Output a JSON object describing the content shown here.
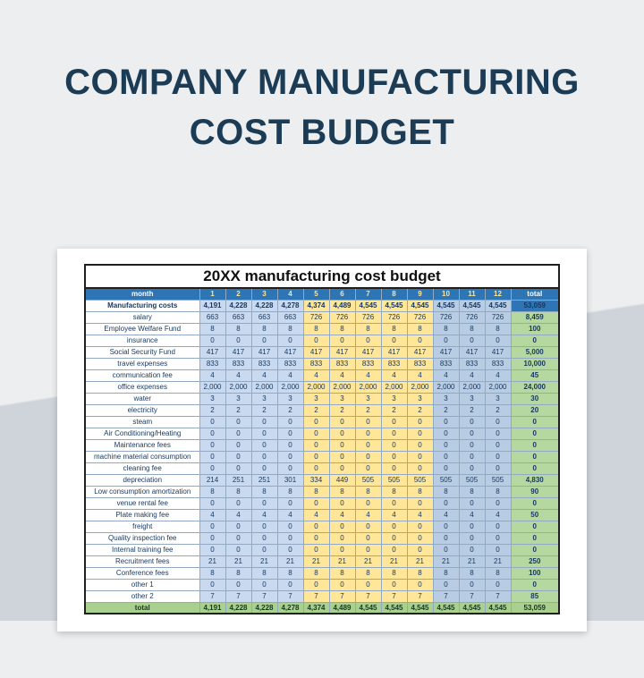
{
  "title": {
    "line1": "COMPANY MANUFACTURING",
    "line2": "COST BUDGET"
  },
  "spreadsheet": {
    "title": "20XX manufacturing cost budget",
    "columns": {
      "month_header": "month",
      "months": [
        "1",
        "2",
        "3",
        "4",
        "5",
        "6",
        "7",
        "8",
        "9",
        "10",
        "11",
        "12"
      ],
      "total_header": "total"
    },
    "rows": [
      {
        "label": "Manufacturing costs",
        "values": [
          "4,191",
          "4,228",
          "4,228",
          "4,278",
          "4,374",
          "4,489",
          "4,545",
          "4,545",
          "4,545",
          "4,545",
          "4,545",
          "4,545"
        ],
        "total": "53,059",
        "emphasis": "header-row"
      },
      {
        "label": "salary",
        "values": [
          "663",
          "663",
          "663",
          "663",
          "726",
          "726",
          "726",
          "726",
          "726",
          "726",
          "726",
          "726"
        ],
        "total": "8,459"
      },
      {
        "label": "Employee Welfare Fund",
        "values": [
          "8",
          "8",
          "8",
          "8",
          "8",
          "8",
          "8",
          "8",
          "8",
          "8",
          "8",
          "8"
        ],
        "total": "100"
      },
      {
        "label": "insurance",
        "values": [
          "0",
          "0",
          "0",
          "0",
          "0",
          "0",
          "0",
          "0",
          "0",
          "0",
          "0",
          "0"
        ],
        "total": "0"
      },
      {
        "label": "Social Security Fund",
        "values": [
          "417",
          "417",
          "417",
          "417",
          "417",
          "417",
          "417",
          "417",
          "417",
          "417",
          "417",
          "417"
        ],
        "total": "5,000"
      },
      {
        "label": "travel expenses",
        "values": [
          "833",
          "833",
          "833",
          "833",
          "833",
          "833",
          "833",
          "833",
          "833",
          "833",
          "833",
          "833"
        ],
        "total": "10,000"
      },
      {
        "label": "communication fee",
        "values": [
          "4",
          "4",
          "4",
          "4",
          "4",
          "4",
          "4",
          "4",
          "4",
          "4",
          "4",
          "4"
        ],
        "total": "45"
      },
      {
        "label": "office expenses",
        "values": [
          "2,000",
          "2,000",
          "2,000",
          "2,000",
          "2,000",
          "2,000",
          "2,000",
          "2,000",
          "2,000",
          "2,000",
          "2,000",
          "2,000"
        ],
        "total": "24,000"
      },
      {
        "label": "water",
        "values": [
          "3",
          "3",
          "3",
          "3",
          "3",
          "3",
          "3",
          "3",
          "3",
          "3",
          "3",
          "3"
        ],
        "total": "30"
      },
      {
        "label": "electricity",
        "values": [
          "2",
          "2",
          "2",
          "2",
          "2",
          "2",
          "2",
          "2",
          "2",
          "2",
          "2",
          "2"
        ],
        "total": "20"
      },
      {
        "label": "steam",
        "values": [
          "0",
          "0",
          "0",
          "0",
          "0",
          "0",
          "0",
          "0",
          "0",
          "0",
          "0",
          "0"
        ],
        "total": "0"
      },
      {
        "label": "Air Conditioning/Heating",
        "values": [
          "0",
          "0",
          "0",
          "0",
          "0",
          "0",
          "0",
          "0",
          "0",
          "0",
          "0",
          "0"
        ],
        "total": "0"
      },
      {
        "label": "Maintenance fees",
        "values": [
          "0",
          "0",
          "0",
          "0",
          "0",
          "0",
          "0",
          "0",
          "0",
          "0",
          "0",
          "0"
        ],
        "total": "0"
      },
      {
        "label": "machine material consumption",
        "values": [
          "0",
          "0",
          "0",
          "0",
          "0",
          "0",
          "0",
          "0",
          "0",
          "0",
          "0",
          "0"
        ],
        "total": "0"
      },
      {
        "label": "cleaning fee",
        "values": [
          "0",
          "0",
          "0",
          "0",
          "0",
          "0",
          "0",
          "0",
          "0",
          "0",
          "0",
          "0"
        ],
        "total": "0"
      },
      {
        "label": "depreciation",
        "values": [
          "214",
          "251",
          "251",
          "301",
          "334",
          "449",
          "505",
          "505",
          "505",
          "505",
          "505",
          "505"
        ],
        "total": "4,830"
      },
      {
        "label": "Low consumption amortization",
        "values": [
          "8",
          "8",
          "8",
          "8",
          "8",
          "8",
          "8",
          "8",
          "8",
          "8",
          "8",
          "8"
        ],
        "total": "90"
      },
      {
        "label": "venue rental fee",
        "values": [
          "0",
          "0",
          "0",
          "0",
          "0",
          "0",
          "0",
          "0",
          "0",
          "0",
          "0",
          "0"
        ],
        "total": "0"
      },
      {
        "label": "Plate making fee",
        "values": [
          "4",
          "4",
          "4",
          "4",
          "4",
          "4",
          "4",
          "4",
          "4",
          "4",
          "4",
          "4"
        ],
        "total": "50"
      },
      {
        "label": "freight",
        "values": [
          "0",
          "0",
          "0",
          "0",
          "0",
          "0",
          "0",
          "0",
          "0",
          "0",
          "0",
          "0"
        ],
        "total": "0"
      },
      {
        "label": "Quality inspection fee",
        "values": [
          "0",
          "0",
          "0",
          "0",
          "0",
          "0",
          "0",
          "0",
          "0",
          "0",
          "0",
          "0"
        ],
        "total": "0"
      },
      {
        "label": "Internal training fee",
        "values": [
          "0",
          "0",
          "0",
          "0",
          "0",
          "0",
          "0",
          "0",
          "0",
          "0",
          "0",
          "0"
        ],
        "total": "0"
      },
      {
        "label": "Recruitment fees",
        "values": [
          "21",
          "21",
          "21",
          "21",
          "21",
          "21",
          "21",
          "21",
          "21",
          "21",
          "21",
          "21"
        ],
        "total": "250"
      },
      {
        "label": "Conference fees",
        "values": [
          "8",
          "8",
          "8",
          "8",
          "8",
          "8",
          "8",
          "8",
          "8",
          "8",
          "8",
          "8"
        ],
        "total": "100"
      },
      {
        "label": "other 1",
        "values": [
          "0",
          "0",
          "0",
          "0",
          "0",
          "0",
          "0",
          "0",
          "0",
          "0",
          "0",
          "0"
        ],
        "total": "0"
      },
      {
        "label": "other 2",
        "values": [
          "7",
          "7",
          "7",
          "7",
          "7",
          "7",
          "7",
          "7",
          "7",
          "7",
          "7",
          "7"
        ],
        "total": "85"
      },
      {
        "label": "total",
        "values": [
          "4,191",
          "4,228",
          "4,228",
          "4,278",
          "4,374",
          "4,489",
          "4,545",
          "4,545",
          "4,545",
          "4,545",
          "4,545",
          "4,545"
        ],
        "total": "53,059",
        "emphasis": "footer-row"
      }
    ]
  },
  "colors": {
    "header_bg": "#2e75b6",
    "header_text": "#ffffff",
    "header_month_text": "#ffe699",
    "band_months_1_4": "#c9daf0",
    "band_months_5_9": "#ffe699",
    "band_months_10_12": "#b8cce4",
    "total_column": "#b5d7a0",
    "footer_row": "#a9d08e",
    "cell_text": "#17375e",
    "table_border": "#93a9c2",
    "title_text": "#1b3c54",
    "card_bg": "#ffffff",
    "bg_top": "#eceef0",
    "bg_bottom": "#ced4da"
  }
}
